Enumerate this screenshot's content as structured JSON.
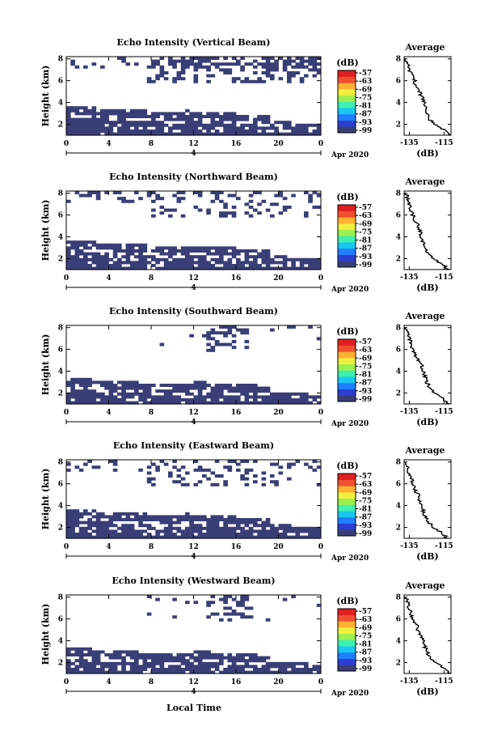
{
  "figure": {
    "xlabel": "Local Time",
    "date_label": "Apr 2020",
    "date_day": "4",
    "colorbar_unit": "(dB)",
    "colors": {
      "fill": "#3a3e77",
      "colormap": [
        "#3a3e77",
        "#2d3fd0",
        "#1f7fff",
        "#19c7f0",
        "#3cf0b0",
        "#9cf050",
        "#f0f040",
        "#ffb030",
        "#f05030",
        "#e02020"
      ]
    }
  },
  "chart_data": [
    {
      "type": "heatmap",
      "title": "Echo Intensity (Vertical Beam)",
      "ylabel": "Height (km)",
      "x_ticks": [
        "0",
        "4",
        "8",
        "12",
        "16",
        "20",
        "0"
      ],
      "y_ticks": [
        "2",
        "4",
        "6",
        "8"
      ],
      "xlim": [
        0,
        24
      ],
      "ylim": [
        1,
        8.2
      ],
      "colorbar": {
        "unit": "(dB)",
        "ticks": [
          "-57",
          "-63",
          "-69",
          "-75",
          "-81",
          "-87",
          "-93",
          "-99"
        ],
        "range": [
          -99,
          -57
        ]
      },
      "profile": {
        "title": "Average",
        "xlabel": "(dB)",
        "x_ticks": [
          "-135",
          "-115"
        ],
        "y_ticks": [
          "2",
          "4",
          "6",
          "8"
        ],
        "xlim": [
          -138,
          -111
        ],
        "ylim": [
          1,
          8.2
        ],
        "height": [
          1.0,
          1.5,
          2.0,
          2.5,
          3.0,
          3.5,
          4.0,
          4.5,
          5.0,
          5.5,
          6.0,
          6.5,
          7.0,
          7.5,
          8.0
        ],
        "value": [
          -112,
          -115,
          -120,
          -124,
          -125,
          -126,
          -126,
          -128,
          -129,
          -131,
          -132,
          -133,
          -135,
          -136,
          -137
        ]
      },
      "echo_layers": [
        "0-4 km layer at about -99 dB across the day",
        "scattered echoes between 5 and 8 km after 08 LT"
      ]
    },
    {
      "type": "heatmap",
      "title": "Echo Intensity (Northward Beam)",
      "ylabel": "Height (km)",
      "x_ticks": [
        "0",
        "4",
        "8",
        "12",
        "16",
        "20",
        "0"
      ],
      "y_ticks": [
        "2",
        "4",
        "6",
        "8"
      ],
      "xlim": [
        0,
        24
      ],
      "ylim": [
        1,
        8.2
      ],
      "colorbar": {
        "unit": "(dB)",
        "ticks": [
          "-57",
          "-63",
          "-69",
          "-75",
          "-81",
          "-87",
          "-93",
          "-99"
        ],
        "range": [
          -99,
          -57
        ]
      },
      "profile": {
        "title": "Average",
        "xlabel": "(dB)",
        "x_ticks": [
          "-135",
          "-115"
        ],
        "y_ticks": [
          "2",
          "4",
          "6",
          "8"
        ],
        "xlim": [
          -138,
          -111
        ],
        "ylim": [
          1,
          8.2
        ],
        "height": [
          1.0,
          1.5,
          2.0,
          2.5,
          3.0,
          3.5,
          4.0,
          4.5,
          5.0,
          5.5,
          6.0,
          6.5,
          7.0,
          7.5,
          8.0
        ],
        "value": [
          -112,
          -116,
          -121,
          -124,
          -126,
          -127,
          -128,
          -129,
          -130,
          -132,
          -133,
          -134,
          -135,
          -136,
          -137
        ]
      },
      "echo_layers": [
        "0-4 km layer",
        "patchy echoes 6-8 km"
      ]
    },
    {
      "type": "heatmap",
      "title": "Echo Intensity (Southward Beam)",
      "ylabel": "Height (km)",
      "x_ticks": [
        "0",
        "4",
        "8",
        "12",
        "16",
        "20",
        "0"
      ],
      "y_ticks": [
        "2",
        "4",
        "6",
        "8"
      ],
      "xlim": [
        0,
        24
      ],
      "ylim": [
        1,
        8.2
      ],
      "colorbar": {
        "unit": "(dB)",
        "ticks": [
          "-57",
          "-63",
          "-69",
          "-75",
          "-81",
          "-87",
          "-93",
          "-99"
        ],
        "range": [
          -99,
          -57
        ]
      },
      "profile": {
        "title": "Average",
        "xlabel": "(dB)",
        "x_ticks": [
          "-135",
          "-115"
        ],
        "y_ticks": [
          "2",
          "4",
          "6",
          "8"
        ],
        "xlim": [
          -138,
          -111
        ],
        "ylim": [
          1,
          8.2
        ],
        "height": [
          1.0,
          1.5,
          2.0,
          2.5,
          3.0,
          3.5,
          4.0,
          4.5,
          5.0,
          5.5,
          6.0,
          6.5,
          7.0,
          7.5,
          8.0
        ],
        "value": [
          -112,
          -116,
          -121,
          -123,
          -125,
          -126,
          -127,
          -128,
          -130,
          -132,
          -133,
          -134,
          -135,
          -136,
          -137
        ]
      },
      "echo_layers": [
        "0-3 km layer",
        "isolated echoes near 7-8 km around 14 LT"
      ]
    },
    {
      "type": "heatmap",
      "title": "Echo Intensity (Eastward Beam)",
      "ylabel": "Height (km)",
      "x_ticks": [
        "0",
        "4",
        "8",
        "12",
        "16",
        "20",
        "0"
      ],
      "y_ticks": [
        "2",
        "4",
        "6",
        "8"
      ],
      "xlim": [
        0,
        24
      ],
      "ylim": [
        1,
        8.2
      ],
      "colorbar": {
        "unit": "(dB)",
        "ticks": [
          "-57",
          "-63",
          "-69",
          "-75",
          "-81",
          "-87",
          "-93",
          "-99"
        ],
        "range": [
          -99,
          -57
        ]
      },
      "profile": {
        "title": "Average",
        "xlabel": "(dB)",
        "x_ticks": [
          "-135",
          "-115"
        ],
        "y_ticks": [
          "2",
          "4",
          "6",
          "8"
        ],
        "xlim": [
          -138,
          -111
        ],
        "ylim": [
          1,
          8.2
        ],
        "height": [
          1.0,
          1.5,
          2.0,
          2.5,
          3.0,
          3.5,
          4.0,
          4.5,
          5.0,
          5.5,
          6.0,
          6.5,
          7.0,
          7.5,
          8.0
        ],
        "value": [
          -113,
          -116,
          -121,
          -124,
          -126,
          -127,
          -128,
          -129,
          -130,
          -132,
          -133,
          -134,
          -135,
          -136,
          -137
        ]
      },
      "echo_layers": [
        "0-4 km layer",
        "scattered echoes 6-8 km"
      ]
    },
    {
      "type": "heatmap",
      "title": "Echo Intensity (Westward Beam)",
      "ylabel": "Height (km)",
      "x_ticks": [
        "0",
        "4",
        "8",
        "12",
        "16",
        "20",
        "0"
      ],
      "y_ticks": [
        "2",
        "4",
        "6",
        "8"
      ],
      "xlim": [
        0,
        24
      ],
      "ylim": [
        1,
        8.2
      ],
      "colorbar": {
        "unit": "(dB)",
        "ticks": [
          "-57",
          "-63",
          "-69",
          "-75",
          "-81",
          "-87",
          "-93",
          "-99"
        ],
        "range": [
          -99,
          -57
        ]
      },
      "profile": {
        "title": "Average",
        "xlabel": "(dB)",
        "x_ticks": [
          "-135",
          "-115"
        ],
        "y_ticks": [
          "2",
          "4",
          "6",
          "8"
        ],
        "xlim": [
          -138,
          -111
        ],
        "ylim": [
          1,
          8.2
        ],
        "height": [
          1.0,
          1.5,
          2.0,
          2.5,
          3.0,
          3.5,
          4.0,
          4.5,
          5.0,
          5.5,
          6.0,
          6.5,
          7.0,
          7.5,
          8.0
        ],
        "value": [
          -112,
          -115,
          -120,
          -123,
          -125,
          -126,
          -127,
          -129,
          -130,
          -131,
          -133,
          -134,
          -135,
          -136,
          -137
        ]
      },
      "echo_layers": [
        "0-3 km layer",
        "isolated echoes near 7-8 km around 14 LT"
      ]
    }
  ]
}
